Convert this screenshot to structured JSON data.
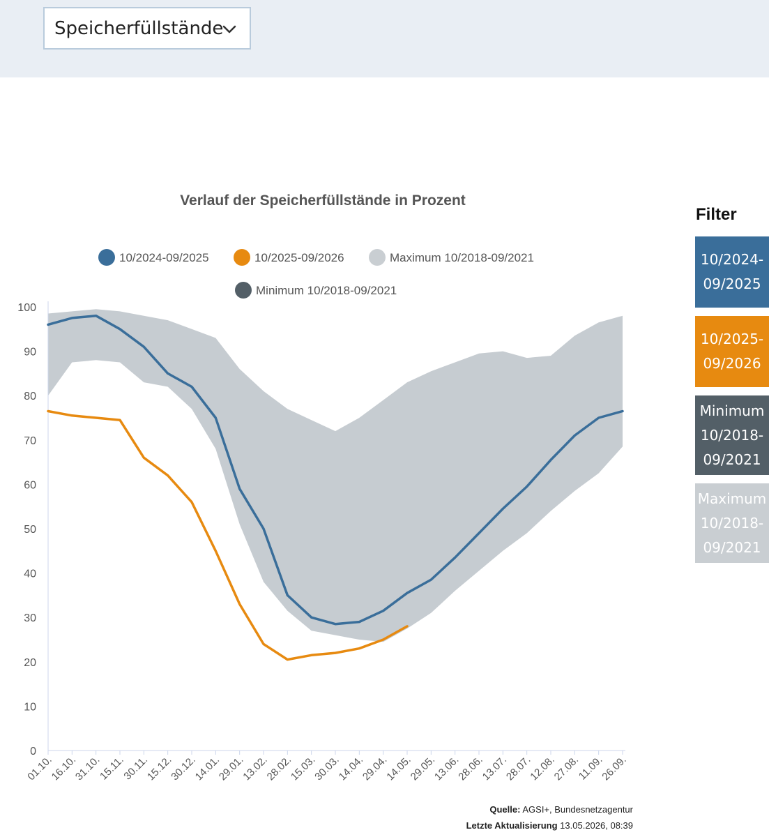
{
  "dropdown": {
    "selected": "Speicherfüllstände"
  },
  "filter": {
    "title": "Filter",
    "buttons": [
      {
        "label": "10/2024-09/2025",
        "lines": [
          "10/2024-",
          "09/2025"
        ],
        "color": "#3a6e9a"
      },
      {
        "label": "10/2025-09/2026",
        "lines": [
          "10/2025-",
          "09/2026"
        ],
        "color": "#e78a10"
      },
      {
        "label": "Minimum 10/2018-09/2021",
        "lines": [
          "Minimum",
          "10/2018-",
          "09/2021"
        ],
        "color": "#535f67"
      },
      {
        "label": "Maximum 10/2018-09/2021",
        "lines": [
          "Maximum",
          "10/2018-",
          "09/2021"
        ],
        "color": "#c9ced2"
      }
    ]
  },
  "source": {
    "quelle_label": "Quelle:",
    "quelle_value": "AGSI+, Bundesnetzagentur",
    "update_label": "Letzte Aktualisierung",
    "update_value": "13.05.2026, 08:39"
  },
  "chart_data": {
    "type": "area",
    "title": "Verlauf der Speicherfüllstände in Prozent",
    "xlabel": "",
    "ylabel": "",
    "ylim": [
      0,
      100
    ],
    "yticks": [
      0,
      10,
      20,
      30,
      40,
      50,
      60,
      70,
      80,
      90,
      100
    ],
    "grid": false,
    "legend_placement": "top",
    "categories": [
      "01.10.",
      "16.10.",
      "31.10.",
      "15.11.",
      "30.11.",
      "15.12.",
      "30.12.",
      "14.01.",
      "29.01.",
      "13.02.",
      "28.02.",
      "15.03.",
      "30.03.",
      "14.04.",
      "29.04.",
      "14.05.",
      "29.05.",
      "13.06.",
      "28.06.",
      "13.07.",
      "28.07.",
      "12.08.",
      "27.08.",
      "11.09.",
      "26.09."
    ],
    "legend": [
      {
        "name": "10/2024-09/2025",
        "color": "#3a6e9a"
      },
      {
        "name": "10/2025-09/2026",
        "color": "#e78a10"
      },
      {
        "name": "Maximum 10/2018-09/2021",
        "color": "#c9ced2"
      },
      {
        "name": "Minimum 10/2018-09/2021",
        "color": "#535f67"
      }
    ],
    "band": {
      "upper": [
        98.5,
        99,
        99.5,
        99,
        98,
        97,
        95,
        93,
        86,
        81,
        77,
        74.5,
        72,
        75,
        79,
        83,
        85.5,
        87.5,
        89.5,
        90,
        88.5,
        89,
        93.5,
        96.5,
        98
      ],
      "lower": [
        80,
        87.5,
        88,
        87.5,
        83,
        82,
        77,
        68,
        51,
        38,
        31.5,
        27,
        26,
        25,
        24.5,
        27.5,
        31,
        36,
        40.5,
        45,
        49,
        54,
        58.5,
        62.5,
        68.5
      ]
    },
    "series": [
      {
        "name": "10/2024-09/2025",
        "color": "#3a6e9a",
        "values": [
          96,
          97.5,
          98,
          95,
          91,
          85,
          82,
          75,
          59,
          50,
          35,
          30,
          28.5,
          29,
          31.5,
          35.5,
          38.5,
          43.5,
          49,
          54.5,
          59.5,
          65.5,
          71,
          75,
          76.5
        ]
      },
      {
        "name": "10/2025-09/2026",
        "color": "#e78a10",
        "values": [
          76.5,
          75.5,
          75,
          74.5,
          66,
          62,
          56,
          45,
          33,
          24,
          20.5,
          21.5,
          22,
          23,
          25,
          28,
          null,
          null,
          null,
          null,
          null,
          null,
          null,
          null,
          null
        ]
      }
    ]
  }
}
